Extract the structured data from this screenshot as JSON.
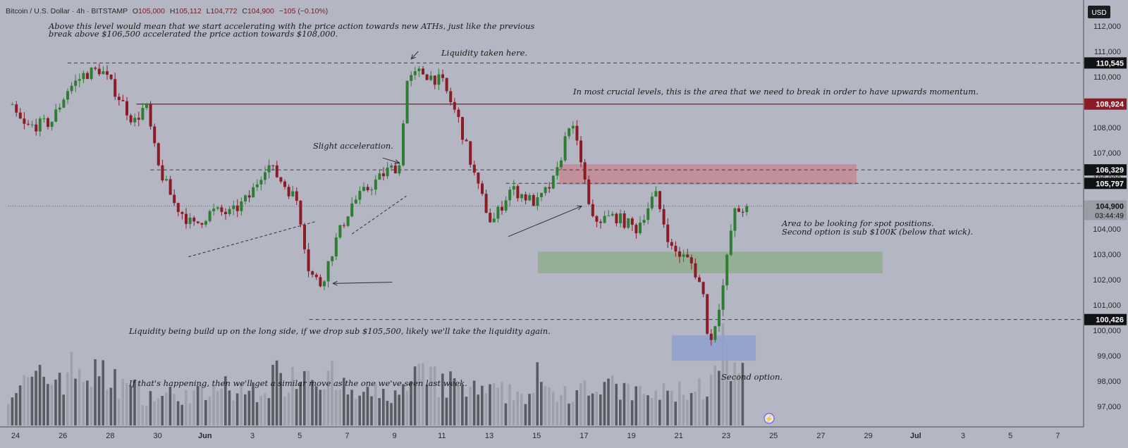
{
  "header": {
    "symbol": "Bitcoin / U.S. Dollar · 4h · BITSTAMP",
    "open_label": "O",
    "open": "105,000",
    "high_label": "H",
    "high": "105,112",
    "low_label": "L",
    "low": "104,772",
    "close_label": "C",
    "close": "104,900",
    "change": "−105 (−0.10%)",
    "currency": "USD"
  },
  "colors": {
    "background": "#b4b7c3",
    "up": "#2f7d33",
    "down": "#8b1b25",
    "resistance_line": "#8b1b25",
    "red_zone": "#c48a94",
    "green_zone": "#8fae8f",
    "blue_zone": "#8ea1cf",
    "volume_light": "#9b9ea8",
    "volume_dark": "#4f5258"
  },
  "annotations": {
    "top_note_1": "Above this level would mean that we start accelerating with the price action towards new ATHs, just like the previous",
    "top_note_2": "break above $106,500 accelerated the price action towards $108,000.",
    "liquidity_taken": "Liquidity taken here.",
    "crucial": "In most crucial levels, this is the area that we need to break in order to have upwards momentum.",
    "slight_accel": "Slight acceleration.",
    "area_1": "Area to be looking for spot positions.",
    "area_2": "Second option is sub $100K (below that wick).",
    "liq_long": "Liquidity being build up on the long side, if we drop sub $105,500, likely we'll take the liquidity again.",
    "similar_move": "If that's happening, then we'll get a similar move as the one we've seen last week.",
    "second_option": "Second option."
  },
  "chart_data": {
    "type": "candlestick",
    "title": "Bitcoin / U.S. Dollar · 4h · BITSTAMP",
    "ylim": [
      96400,
      112800
    ],
    "x_ticks": [
      "24",
      "26",
      "28",
      "30",
      "Jun",
      "3",
      "5",
      "7",
      "9",
      "11",
      "13",
      "15",
      "17",
      "19",
      "21",
      "23",
      "25",
      "27",
      "29",
      "Jul",
      "3",
      "5",
      "7"
    ],
    "y_ticks": [
      "112,000",
      "111,000",
      "110,000",
      "109,000",
      "108,000",
      "107,000",
      "106,000",
      "105,000",
      "104,000",
      "103,000",
      "102,000",
      "101,000",
      "100,000",
      "99,000",
      "98,000",
      "97,000"
    ],
    "price_labels": [
      {
        "value": 110545,
        "text": "110,545",
        "style": "dark"
      },
      {
        "value": 108924,
        "text": "108,924",
        "style": "red"
      },
      {
        "value": 106329,
        "text": "106,329",
        "style": "dark"
      },
      {
        "value": 105797,
        "text": "105,797",
        "style": "dark"
      },
      {
        "value": 104900,
        "text": "104,900",
        "countdown": "03:44:49",
        "style": "grey"
      },
      {
        "value": 100426,
        "text": "100,426",
        "style": "dark"
      }
    ],
    "levels": [
      {
        "value": 110545,
        "style": "dashed",
        "from_day": 2.5
      },
      {
        "value": 108924,
        "style": "solid-red",
        "from_day": 5.4
      },
      {
        "value": 106329,
        "style": "dashed",
        "from_day": 6.0
      },
      {
        "value": 105797,
        "style": "dashed",
        "from_day": 21.0
      },
      {
        "value": 104900,
        "style": "dotted",
        "from_day": 0
      },
      {
        "value": 100426,
        "style": "dashed",
        "from_day": 12.7
      }
    ],
    "zones": [
      {
        "name": "resistance",
        "y_low": 105750,
        "y_high": 106550,
        "day_from": 23.25,
        "day_to": 35.8,
        "color": "red_zone"
      },
      {
        "name": "spot-area",
        "y_low": 102250,
        "y_high": 103100,
        "day_from": 22.35,
        "day_to": 36.9,
        "color": "green_zone"
      },
      {
        "name": "second-option",
        "y_low": 98800,
        "y_high": 99800,
        "day_from": 28.0,
        "day_to": 31.55,
        "color": "blue_zone"
      }
    ],
    "price_path": [
      [
        0,
        108900
      ],
      [
        0.7,
        108000
      ],
      [
        1.8,
        108200
      ],
      [
        2.5,
        109500
      ],
      [
        3.2,
        110100
      ],
      [
        3.9,
        110300
      ],
      [
        4.6,
        109300
      ],
      [
        5.3,
        108200
      ],
      [
        5.8,
        108900
      ],
      [
        6.3,
        106500
      ],
      [
        7.0,
        105000
      ],
      [
        7.8,
        104100
      ],
      [
        8.6,
        104700
      ],
      [
        9.4,
        104600
      ],
      [
        10.2,
        105300
      ],
      [
        10.9,
        106600
      ],
      [
        11.6,
        105800
      ],
      [
        12.2,
        105100
      ],
      [
        12.7,
        102300
      ],
      [
        13.2,
        101800
      ],
      [
        13.8,
        103500
      ],
      [
        14.5,
        105000
      ],
      [
        15.3,
        105700
      ],
      [
        16.0,
        106300
      ],
      [
        16.5,
        106500
      ],
      [
        16.8,
        109800
      ],
      [
        17.4,
        110200
      ],
      [
        18.3,
        109800
      ],
      [
        19.0,
        108300
      ],
      [
        19.8,
        105700
      ],
      [
        20.4,
        104200
      ],
      [
        21.2,
        105600
      ],
      [
        22.3,
        105000
      ],
      [
        23.1,
        106000
      ],
      [
        23.7,
        108300
      ],
      [
        24.2,
        106600
      ],
      [
        24.6,
        104300
      ],
      [
        25.6,
        104500
      ],
      [
        26.5,
        104000
      ],
      [
        27.3,
        105400
      ],
      [
        28.0,
        103200
      ],
      [
        28.8,
        102700
      ],
      [
        29.3,
        101600
      ],
      [
        29.6,
        99300
      ],
      [
        30.2,
        101900
      ],
      [
        30.6,
        104600
      ],
      [
        31.0,
        104800
      ],
      [
        31.2,
        104900
      ]
    ],
    "volume_path": [
      [
        0,
        0.4
      ],
      [
        3,
        0.75
      ],
      [
        6,
        0.3
      ],
      [
        10,
        0.35
      ],
      [
        12.8,
        0.85
      ],
      [
        14.5,
        0.3
      ],
      [
        16.7,
        0.35
      ],
      [
        17.2,
        0.6
      ],
      [
        20,
        0.35
      ],
      [
        23,
        0.35
      ],
      [
        24.5,
        0.5
      ],
      [
        27,
        0.3
      ],
      [
        29.5,
        0.45
      ],
      [
        30.3,
        0.75
      ],
      [
        31.2,
        0.6
      ]
    ],
    "drawn_arrows": [
      {
        "from": [
          17.3,
          111000
        ],
        "to": [
          17.0,
          110700
        ]
      },
      {
        "from": [
          15.8,
          106800
        ],
        "to": [
          16.5,
          106600
        ]
      },
      {
        "from": [
          16.2,
          101900
        ],
        "to": [
          13.7,
          101850
        ]
      },
      {
        "from": [
          21.1,
          103700
        ],
        "to": [
          24.2,
          104900
        ]
      }
    ],
    "dashed_trendlines": [
      {
        "from": [
          7.6,
          102900
        ],
        "to": [
          13.0,
          104300
        ]
      },
      {
        "from": [
          14.5,
          103800
        ],
        "to": [
          16.8,
          105300
        ]
      }
    ]
  }
}
